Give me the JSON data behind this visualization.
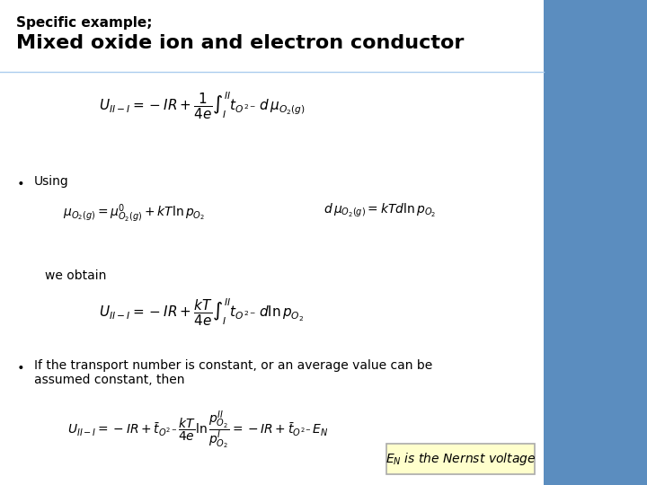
{
  "title_line1": "Specific example;",
  "title_line2": "Mixed oxide ion and electron conductor",
  "bg_color": "#ffffff",
  "right_panel_color": "#5b8dbf",
  "formula1": "$U_{II-I} = -IR + \\dfrac{1}{4e}\\int_{I}^{II} t_{O^{2-}}\\, d\\, \\mu_{O_2(g)}$",
  "bullet1": "Using",
  "formula2a": "$\\mu_{O_2(g)} = \\mu^0_{O_2(g)} + kT \\ln p_{O_2}$",
  "formula2b": "$d\\, \\mu_{O_2(g)} = kTd \\ln p_{O_2}$",
  "we_obtain": "we obtain",
  "formula3": "$U_{II-I} = -IR + \\dfrac{kT}{4e}\\int_{I}^{II} t_{O^{2-}}\\, d \\ln p_{O_2}$",
  "bullet2_line1": "If the transport number is constant, or an average value can be",
  "bullet2_line2": "assumed constant, then",
  "formula4": "$U_{II-I} = -IR + \\bar{t}_{O^{2-}}\\dfrac{kT}{4e}\\ln\\dfrac{p^{II}_{O_2}}{p^{I}_{O_2}} = -IR + \\bar{t}_{O^{2-}} E_N$",
  "nernst_box_text": "$E_N$ is the Nernst voltage",
  "nernst_box_bg": "#ffffcc",
  "nernst_box_border": "#aaaaaa",
  "title1_fontsize": 11,
  "title2_fontsize": 16,
  "body_fontsize": 10,
  "formula_fontsize": 11
}
